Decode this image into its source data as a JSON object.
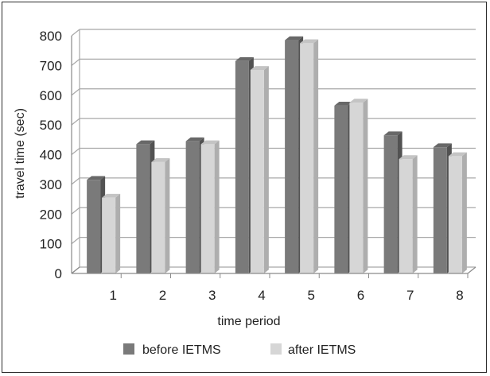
{
  "chart_data": {
    "type": "bar",
    "title": "",
    "xlabel": "time period",
    "ylabel": "travel time (sec)",
    "ylim": [
      0,
      800
    ],
    "yticks": [
      0,
      100,
      200,
      300,
      400,
      500,
      600,
      700,
      800
    ],
    "categories": [
      "1",
      "2",
      "3",
      "4",
      "5",
      "6",
      "7",
      "8"
    ],
    "grid": true,
    "legend_position": "bottom",
    "series": [
      {
        "name": "before IETMS",
        "color": "#7a7a7a",
        "values": [
          315,
          435,
          445,
          715,
          785,
          565,
          465,
          425
        ]
      },
      {
        "name": "after IETMS",
        "color": "#d6d6d6",
        "values": [
          255,
          375,
          435,
          685,
          775,
          575,
          385,
          395
        ]
      }
    ]
  }
}
